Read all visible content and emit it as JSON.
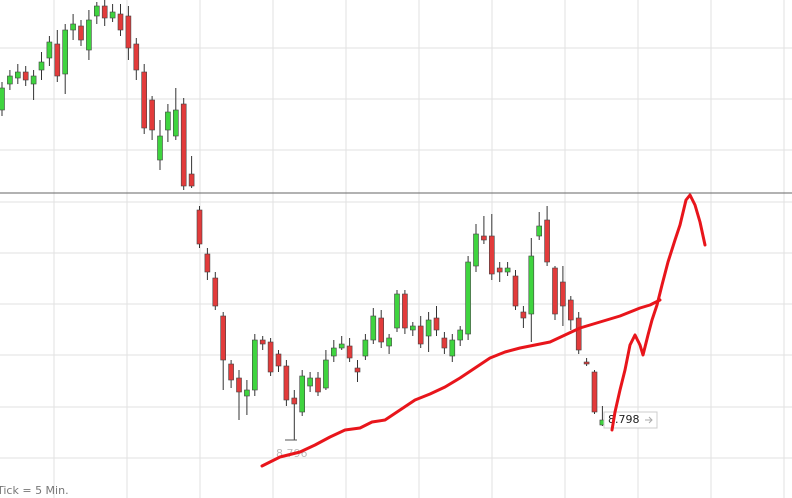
{
  "chart_data": {
    "type": "candlestick",
    "open": [
      8.829,
      8.8316,
      8.8322,
      8.8328,
      8.8316,
      8.833,
      8.8342,
      8.8356,
      8.8326,
      8.837,
      8.8374,
      8.835,
      8.8384,
      8.8394,
      8.8382,
      8.8386,
      8.8384,
      8.8356,
      8.8328,
      8.83,
      8.824,
      8.827,
      8.8264,
      8.8296,
      8.8226,
      8.819,
      8.8146,
      8.8122,
      8.8084,
      8.8036,
      8.8022,
      8.8004,
      8.801,
      8.806,
      8.8058,
      8.8046,
      8.8034,
      8.8002,
      8.7988,
      8.8014,
      8.8022,
      8.8012,
      8.8044,
      8.8052,
      8.8054,
      8.8032,
      8.8044,
      8.806,
      8.8082,
      8.8054,
      8.8072,
      8.8106,
      8.807,
      8.8074,
      8.8064,
      8.8082,
      8.8062,
      8.8044,
      8.806,
      8.8066,
      8.8134,
      8.8164,
      8.8164,
      8.8132,
      8.8128,
      8.8124,
      8.8088,
      8.8086,
      8.8164,
      8.818,
      8.8132,
      8.8118,
      8.81,
      8.8082,
      8.8038,
      8.8028,
      8.7975
    ],
    "high": [
      8.8318,
      8.833,
      8.8336,
      8.8334,
      8.833,
      8.8348,
      8.8364,
      8.837,
      8.8376,
      8.8386,
      8.838,
      8.839,
      8.8398,
      8.84,
      8.8396,
      8.8396,
      8.8394,
      8.8362,
      8.8336,
      8.8304,
      8.828,
      8.8296,
      8.8312,
      8.8302,
      8.8244,
      8.8194,
      8.8152,
      8.8128,
      8.8088,
      8.804,
      8.803,
      8.802,
      8.8066,
      8.8064,
      8.8062,
      8.805,
      8.804,
      8.801,
      8.803,
      8.8028,
      8.8028,
      8.805,
      8.806,
      8.8064,
      8.8062,
      8.804,
      8.8066,
      8.8092,
      8.809,
      8.8066,
      8.811,
      8.811,
      8.8078,
      8.8084,
      8.8088,
      8.8094,
      8.8068,
      8.8066,
      8.8074,
      8.8144,
      8.8176,
      8.8184,
      8.8186,
      8.8138,
      8.8138,
      8.813,
      8.8094,
      8.8162,
      8.8188,
      8.8194,
      8.8134,
      8.8134,
      8.8104,
      8.8088,
      8.8042,
      8.803,
      8.7994
    ],
    "low": [
      8.8284,
      8.831,
      8.8316,
      8.8314,
      8.83,
      8.832,
      8.8334,
      8.8318,
      8.8306,
      8.836,
      8.8354,
      8.834,
      8.8376,
      8.8374,
      8.8378,
      8.8364,
      8.834,
      8.832,
      8.8266,
      8.826,
      8.823,
      8.8258,
      8.826,
      8.821,
      8.8212,
      8.8152,
      8.812,
      8.809,
      8.801,
      8.8012,
      8.798,
      8.7985,
      8.8004,
      8.805,
      8.8024,
      8.8028,
      8.7994,
      8.796,
      8.7984,
      8.8008,
      8.8004,
      8.801,
      8.8038,
      8.805,
      8.8038,
      8.8018,
      8.804,
      8.8056,
      8.8052,
      8.8046,
      8.8068,
      8.8066,
      8.8064,
      8.8052,
      8.8048,
      8.8064,
      8.8046,
      8.8038,
      8.8054,
      8.806,
      8.8128,
      8.8156,
      8.812,
      8.8118,
      8.8124,
      8.809,
      8.8072,
      8.8058,
      8.816,
      8.8134,
      8.808,
      8.8074,
      8.807,
      8.8046,
      8.8034,
      8.7986,
      8.7974
    ],
    "close": [
      8.8312,
      8.8324,
      8.8328,
      8.832,
      8.8324,
      8.8338,
      8.8358,
      8.8324,
      8.837,
      8.8376,
      8.836,
      8.838,
      8.8394,
      8.8382,
      8.8388,
      8.837,
      8.8352,
      8.833,
      8.8272,
      8.827,
      8.8264,
      8.8288,
      8.829,
      8.8214,
      8.8214,
      8.8156,
      8.8128,
      8.8094,
      8.804,
      8.802,
      8.8008,
      8.801,
      8.806,
      8.8056,
      8.8028,
      8.8034,
      8.8,
      8.7996,
      8.8024,
      8.8022,
      8.8008,
      8.804,
      8.8052,
      8.8056,
      8.8042,
      8.8028,
      8.806,
      8.8084,
      8.8058,
      8.8062,
      8.8106,
      8.8072,
      8.8074,
      8.8056,
      8.808,
      8.807,
      8.8052,
      8.806,
      8.807,
      8.8138,
      8.8166,
      8.816,
      8.8126,
      8.8128,
      8.8132,
      8.8094,
      8.8082,
      8.8144,
      8.8174,
      8.8138,
      8.8086,
      8.8094,
      8.808,
      8.805,
      8.8036,
      8.7988,
      8.798
    ],
    "up_color": "#3fd43f",
    "down_color": "#e23b3b",
    "ylim": [
      8.7902,
      8.84
    ],
    "reference_line": 8.8207,
    "annotations": [
      {
        "value": 8.798,
        "label": "8.798"
      },
      {
        "value": 8.796,
        "label": "8.796"
      }
    ],
    "footer": "Tick = 5 Min."
  }
}
